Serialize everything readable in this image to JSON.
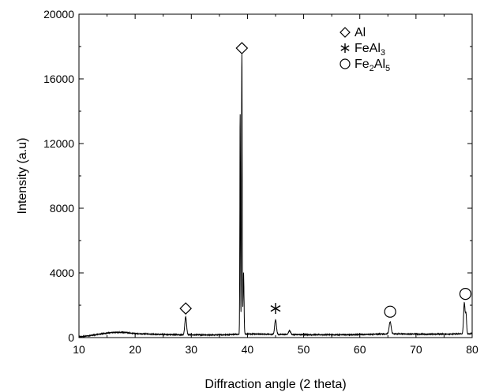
{
  "chart_data": {
    "type": "line",
    "title": "",
    "xlabel": "Diffraction angle (2 theta)",
    "ylabel": "Intensity (a.u)",
    "xlim": [
      10,
      80
    ],
    "ylim": [
      0,
      20000
    ],
    "xticks": [
      10,
      20,
      30,
      40,
      50,
      60,
      70,
      80
    ],
    "yticks": [
      0,
      4000,
      8000,
      12000,
      16000,
      20000
    ],
    "grid": false,
    "legend_position": "top-right",
    "legend": [
      {
        "marker": "diamond",
        "label": "Al",
        "parts": [
          {
            "t": "Al",
            "sub": false
          }
        ]
      },
      {
        "marker": "asterisk",
        "label": "FeAl3",
        "parts": [
          {
            "t": "FeAl",
            "sub": false
          },
          {
            "t": "3",
            "sub": true
          }
        ]
      },
      {
        "marker": "circle",
        "label": "Fe2Al5",
        "parts": [
          {
            "t": "Fe",
            "sub": false
          },
          {
            "t": "2",
            "sub": true
          },
          {
            "t": "Al",
            "sub": false
          },
          {
            "t": "5",
            "sub": true
          }
        ]
      }
    ],
    "series": [
      {
        "baseline": [
          [
            10,
            50
          ],
          [
            11,
            80
          ],
          [
            12,
            130
          ],
          [
            13,
            180
          ],
          [
            14,
            230
          ],
          [
            15,
            280
          ],
          [
            16,
            320
          ],
          [
            17,
            330
          ],
          [
            18,
            320
          ],
          [
            19,
            290
          ],
          [
            20,
            250
          ],
          [
            22,
            220
          ],
          [
            24,
            200
          ],
          [
            26,
            185
          ],
          [
            28,
            175
          ],
          [
            30,
            170
          ],
          [
            32,
            165
          ],
          [
            34,
            165
          ],
          [
            36,
            175
          ],
          [
            38,
            200
          ],
          [
            40,
            220
          ],
          [
            42,
            215
          ],
          [
            44,
            205
          ],
          [
            46,
            195
          ],
          [
            48,
            185
          ],
          [
            50,
            180
          ],
          [
            52,
            175
          ],
          [
            55,
            175
          ],
          [
            58,
            180
          ],
          [
            60,
            185
          ],
          [
            62,
            200
          ],
          [
            64,
            220
          ],
          [
            66,
            230
          ],
          [
            68,
            225
          ],
          [
            70,
            215
          ],
          [
            72,
            210
          ],
          [
            74,
            215
          ],
          [
            76,
            220
          ],
          [
            78,
            230
          ],
          [
            80,
            240
          ]
        ],
        "peaks": [
          {
            "x": 29.0,
            "y": 1100,
            "w": 0.22
          },
          {
            "x": 38.7,
            "y": 13600,
            "w": 0.08
          },
          {
            "x": 39.0,
            "y": 17300,
            "w": 0.09
          },
          {
            "x": 39.3,
            "y": 3800,
            "w": 0.12
          },
          {
            "x": 45.0,
            "y": 900,
            "w": 0.22
          },
          {
            "x": 47.5,
            "y": 250,
            "w": 0.25
          },
          {
            "x": 65.4,
            "y": 750,
            "w": 0.25
          },
          {
            "x": 78.6,
            "y": 1900,
            "w": 0.18
          },
          {
            "x": 78.9,
            "y": 1200,
            "w": 0.15
          }
        ]
      }
    ],
    "annotations": [
      {
        "marker": "diamond",
        "x": 29.0,
        "y": 1800
      },
      {
        "marker": "diamond",
        "x": 39.0,
        "y": 17900
      },
      {
        "marker": "asterisk",
        "x": 45.0,
        "y": 1800
      },
      {
        "marker": "circle",
        "x": 65.4,
        "y": 1600
      },
      {
        "marker": "circle",
        "x": 78.8,
        "y": 2700
      }
    ]
  }
}
